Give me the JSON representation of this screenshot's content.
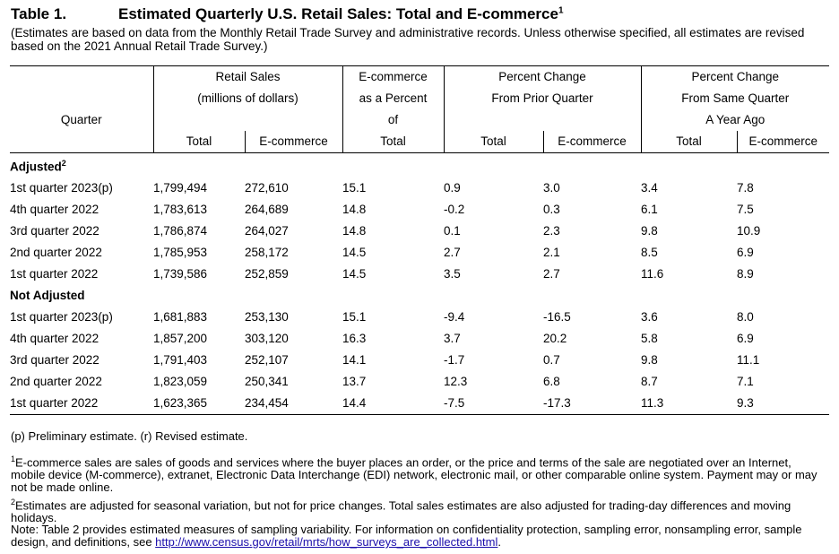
{
  "title": {
    "number": "Table 1.",
    "text": "Estimated Quarterly U.S. Retail Sales: Total and E-commerce",
    "footnote_mark": "1"
  },
  "subtitle": "(Estimates are based on data from the Monthly Retail Trade Survey and administrative records. Unless otherwise specified, all estimates are revised based on the 2021 Annual Retail Trade Survey.)",
  "headers": {
    "quarter": "Quarter",
    "retail_sales": [
      "Retail Sales",
      "(millions of dollars)"
    ],
    "ecom_pct": [
      "E-commerce",
      "as a Percent",
      "of",
      "Total"
    ],
    "pct_prior": [
      "Percent Change",
      "From Prior Quarter"
    ],
    "pct_year": [
      "Percent Change",
      "From Same Quarter",
      "A Year Ago"
    ],
    "total": "Total",
    "ecommerce": "E-commerce"
  },
  "sections": [
    {
      "label": "Adjusted",
      "mark": "2",
      "rows": [
        {
          "quarter": "1st quarter 2023(p)",
          "total": "1,799,494",
          "ecom": "272,610",
          "pct_of_total": "15.1",
          "prior_total": "0.9",
          "prior_ecom": "3.0",
          "year_total": "3.4",
          "year_ecom": "7.8"
        },
        {
          "quarter": "4th quarter 2022",
          "total": "1,783,613",
          "ecom": "264,689",
          "pct_of_total": "14.8",
          "prior_total": "-0.2",
          "prior_ecom": "0.3",
          "year_total": "6.1",
          "year_ecom": "7.5"
        },
        {
          "quarter": "3rd quarter 2022",
          "total": "1,786,874",
          "ecom": "264,027",
          "pct_of_total": "14.8",
          "prior_total": "0.1",
          "prior_ecom": "2.3",
          "year_total": "9.8",
          "year_ecom": "10.9"
        },
        {
          "quarter": "2nd quarter 2022",
          "total": "1,785,953",
          "ecom": "258,172",
          "pct_of_total": "14.5",
          "prior_total": "2.7",
          "prior_ecom": "2.1",
          "year_total": "8.5",
          "year_ecom": "6.9"
        },
        {
          "quarter": "1st quarter 2022",
          "total": "1,739,586",
          "ecom": "252,859",
          "pct_of_total": "14.5",
          "prior_total": "3.5",
          "prior_ecom": "2.7",
          "year_total": "11.6",
          "year_ecom": "8.9"
        }
      ]
    },
    {
      "label": "Not Adjusted",
      "mark": "",
      "rows": [
        {
          "quarter": "1st quarter 2023(p)",
          "total": "1,681,883",
          "ecom": "253,130",
          "pct_of_total": "15.1",
          "prior_total": "-9.4",
          "prior_ecom": "-16.5",
          "year_total": "3.6",
          "year_ecom": "8.0"
        },
        {
          "quarter": "4th quarter 2022",
          "total": "1,857,200",
          "ecom": "303,120",
          "pct_of_total": "16.3",
          "prior_total": "3.7",
          "prior_ecom": "20.2",
          "year_total": "5.8",
          "year_ecom": "6.9"
        },
        {
          "quarter": "3rd quarter 2022",
          "total": "1,791,403",
          "ecom": "252,107",
          "pct_of_total": "14.1",
          "prior_total": "-1.7",
          "prior_ecom": "0.7",
          "year_total": "9.8",
          "year_ecom": "11.1"
        },
        {
          "quarter": "2nd quarter 2022",
          "total": "1,823,059",
          "ecom": "250,341",
          "pct_of_total": "13.7",
          "prior_total": "12.3",
          "prior_ecom": "6.8",
          "year_total": "8.7",
          "year_ecom": "7.1"
        },
        {
          "quarter": "1st quarter 2022",
          "total": "1,623,365",
          "ecom": "234,454",
          "pct_of_total": "14.4",
          "prior_total": "-7.5",
          "prior_ecom": "-17.3",
          "year_total": "11.3",
          "year_ecom": "9.3"
        }
      ]
    }
  ],
  "footnotes": {
    "prelim": "(p) Preliminary estimate. (r) Revised estimate.",
    "note1_mark": "1",
    "note1": "E-commerce sales are sales of goods and services where the buyer places an order, or the price and terms of the sale are negotiated over an Internet, mobile device (M-commerce), extranet, Electronic Data Interchange (EDI) network, electronic mail, or other comparable online system. Payment may or may not be made online.",
    "note2_mark": "2",
    "note2": "Estimates are adjusted for seasonal variation, but not for price changes. Total sales estimates are also adjusted for trading-day differences and moving holidays.",
    "note3_prefix": "Note: Table 2 provides estimated measures of sampling variability. For information on confidentiality protection, sampling error, nonsampling error, sample design, and definitions, see ",
    "note3_link": "http://www.census.gov/retail/mrts/how_surveys_are_collected.html",
    "note3_suffix": "."
  }
}
